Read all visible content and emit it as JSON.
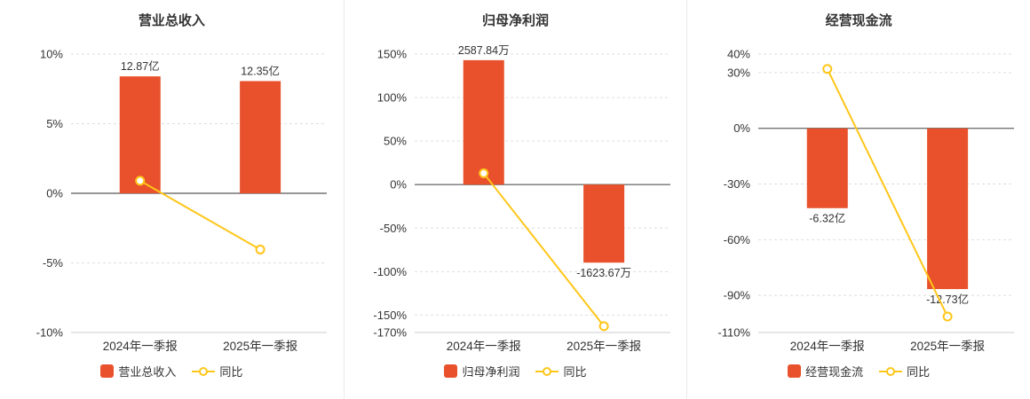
{
  "colors": {
    "bar": "#e8512b",
    "line": "#ffc619",
    "axis_zero_line": "#737373",
    "grid": "#dddddd",
    "baseline": "#cccccc",
    "text": "#333333"
  },
  "chart_data": [
    {
      "type": "bar+line",
      "title": "营业总收入",
      "categories": [
        "2024年一季报",
        "2025年一季报"
      ],
      "bar_series": {
        "name": "营业总收入",
        "display_labels": [
          "12.87亿",
          "12.35亿"
        ],
        "plotted_values_pct": [
          8.4,
          8.06
        ]
      },
      "line_series": {
        "name": "同比",
        "values_pct": [
          0.9,
          -4.04
        ]
      },
      "ylim": [
        -10,
        10
      ],
      "yticks": [
        10,
        5,
        0,
        -5,
        -10
      ],
      "tick_suffix": "%",
      "grid": "dashed",
      "legend_position": "bottom"
    },
    {
      "type": "bar+line",
      "title": "归母净利润",
      "categories": [
        "2024年一季报",
        "2025年一季报"
      ],
      "bar_series": {
        "name": "归母净利润",
        "display_labels": [
          "2587.84万",
          "-1623.67万"
        ],
        "plotted_values_pct": [
          143,
          -89.7
        ]
      },
      "line_series": {
        "name": "同比",
        "values_pct": [
          13,
          -162.75
        ]
      },
      "ylim": [
        -170,
        150
      ],
      "yticks": [
        150,
        100,
        50,
        0,
        -50,
        -100,
        -150,
        -170
      ],
      "tick_suffix": "%",
      "grid": "dashed",
      "legend_position": "bottom"
    },
    {
      "type": "bar+line",
      "title": "经营现金流",
      "categories": [
        "2024年一季报",
        "2025年一季报"
      ],
      "bar_series": {
        "name": "经营现金流",
        "display_labels": [
          "-6.32亿",
          "-12.73亿"
        ],
        "plotted_values_pct": [
          -43,
          -86.6
        ]
      },
      "line_series": {
        "name": "同比",
        "values_pct": [
          32,
          -101.4
        ]
      },
      "ylim": [
        -110,
        40
      ],
      "yticks": [
        40,
        30,
        0,
        -30,
        -60,
        -90,
        -110
      ],
      "tick_suffix": "%",
      "grid": "dashed",
      "legend_position": "bottom"
    }
  ]
}
